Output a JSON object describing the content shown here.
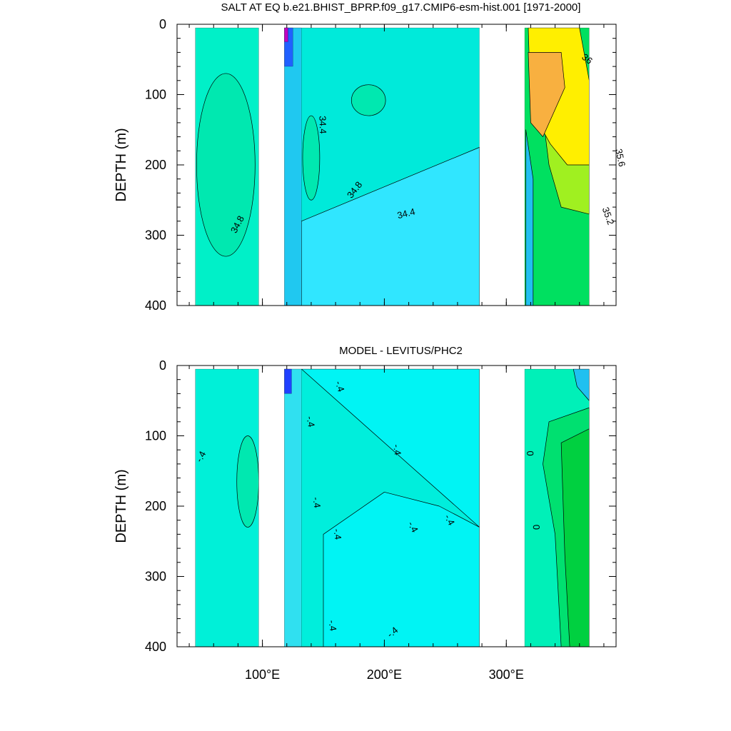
{
  "chart_data": [
    {
      "type": "heatmap",
      "title": "SALT AT EQ b.e21.BHIST_BPRP.f09_g17.CMIP6-esm-hist.001 [1971-2000]",
      "ylabel": "DEPTH (m)",
      "xlim": [
        30,
        390
      ],
      "ylim": [
        400,
        0
      ],
      "y_ticks": [
        "0",
        "100",
        "200",
        "300",
        "400"
      ],
      "x_tick_values": [
        100,
        200,
        300
      ],
      "contour_labels": [
        {
          "text": "34.4",
          "x": 149,
          "y": 143,
          "angle": 88
        },
        {
          "text": "34.8",
          "x": 176,
          "y": 236,
          "angle": -52
        },
        {
          "text": "34.8",
          "x": 80,
          "y": 285,
          "angle": -62
        },
        {
          "text": "34.4",
          "x": 218,
          "y": 270,
          "angle": -14
        },
        {
          "text": "36",
          "x": 366,
          "y": 50,
          "angle": 38
        },
        {
          "text": "35.6",
          "x": 393,
          "y": 190,
          "angle": 78
        },
        {
          "text": "35.2",
          "x": 383,
          "y": 273,
          "angle": 70
        }
      ],
      "regions": [
        {
          "x0": 45,
          "x1": 97,
          "y0": 5,
          "y1": 400,
          "color": "#00f0c8"
        },
        {
          "x0": 45,
          "x1": 97,
          "y0": 5,
          "y1": 400,
          "color": "#00e8b0",
          "shape": "ellipse",
          "cx": 70,
          "cy": 200,
          "rx": 24,
          "ry": 130
        },
        {
          "x0": 118,
          "x1": 278,
          "y0": 5,
          "y1": 400,
          "color": "#00eada"
        },
        {
          "x0": 118,
          "x1": 278,
          "y0": 5,
          "y1": 400,
          "color": "#30e6ff",
          "shape": "wedge",
          "pts": [
            [
              132,
              280
            ],
            [
              278,
              175
            ],
            [
              278,
              400
            ],
            [
              132,
              400
            ]
          ]
        },
        {
          "x0": 118,
          "x1": 132,
          "y0": 5,
          "y1": 400,
          "color": "#20c8f0"
        },
        {
          "x0": 132,
          "x1": 278,
          "y0": 5,
          "y1": 400,
          "color": "#00e8b0",
          "shape": "ellipse",
          "cx": 140,
          "cy": 190,
          "rx": 7,
          "ry": 60
        },
        {
          "x0": 132,
          "x1": 278,
          "y0": 5,
          "y1": 400,
          "color": "#00e8b0",
          "shape": "ellipse",
          "cx": 187,
          "cy": 108,
          "rx": 14,
          "ry": 22
        },
        {
          "x0": 118,
          "x1": 125,
          "y0": 5,
          "y1": 60,
          "color": "#2060ff"
        },
        {
          "x0": 118,
          "x1": 121,
          "y0": 5,
          "y1": 25,
          "color": "#c000c0"
        },
        {
          "x0": 315,
          "x1": 368,
          "y0": 5,
          "y1": 400,
          "color": "#00e060"
        },
        {
          "x0": 315,
          "x1": 368,
          "y0": 5,
          "y1": 400,
          "color": "#a0f020",
          "shape": "wedge",
          "pts": [
            [
              330,
              130
            ],
            [
              368,
              110
            ],
            [
              368,
              270
            ],
            [
              345,
              260
            ],
            [
              335,
              200
            ]
          ]
        },
        {
          "x0": 315,
          "x1": 368,
          "y0": 5,
          "y1": 400,
          "color": "#ffef00",
          "shape": "wedge",
          "pts": [
            [
              318,
              5
            ],
            [
              360,
              5
            ],
            [
              368,
              80
            ],
            [
              368,
              200
            ],
            [
              350,
              200
            ],
            [
              336,
              170
            ],
            [
              320,
              120
            ]
          ]
        },
        {
          "x0": 315,
          "x1": 368,
          "y0": 5,
          "y1": 400,
          "color": "#f8b040",
          "shape": "wedge",
          "pts": [
            [
              318,
              40
            ],
            [
              345,
              40
            ],
            [
              348,
              90
            ],
            [
              330,
              160
            ],
            [
              320,
              140
            ]
          ]
        },
        {
          "x0": 315,
          "x1": 368,
          "y0": 5,
          "y1": 400,
          "color": "#20c0f0",
          "shape": "wedge",
          "pts": [
            [
              316,
              150
            ],
            [
              322,
              220
            ],
            [
              322,
              400
            ],
            [
              316,
              400
            ]
          ]
        }
      ]
    },
    {
      "type": "heatmap",
      "title": "MODEL - LEVITUS/PHC2",
      "ylabel": "DEPTH (m)",
      "xlim": [
        30,
        390
      ],
      "ylim": [
        400,
        0
      ],
      "y_ticks": [
        "0",
        "100",
        "200",
        "300",
        "400"
      ],
      "x_tick_values": [
        100,
        200,
        300
      ],
      "x_tick_labels": [
        "100°E",
        "200°E",
        "300°E"
      ],
      "contour_labels": [
        {
          "text": "-.4",
          "x": 50,
          "y": 130,
          "angle": -62
        },
        {
          "text": "-.4",
          "x": 163,
          "y": 30,
          "angle": 72
        },
        {
          "text": "-.4",
          "x": 139,
          "y": 80,
          "angle": 80
        },
        {
          "text": "-.4",
          "x": 210,
          "y": 120,
          "angle": 82
        },
        {
          "text": "-.4",
          "x": 144,
          "y": 195,
          "angle": 82
        },
        {
          "text": "-.4",
          "x": 161,
          "y": 240,
          "angle": 82
        },
        {
          "text": "-.4",
          "x": 223,
          "y": 230,
          "angle": 62
        },
        {
          "text": "-.4",
          "x": 253,
          "y": 220,
          "angle": 62
        },
        {
          "text": "-.4",
          "x": 157,
          "y": 370,
          "angle": 82
        },
        {
          "text": "-.4",
          "x": 207,
          "y": 380,
          "angle": -40
        },
        {
          "text": "0",
          "x": 319,
          "y": 125,
          "angle": 88
        },
        {
          "text": "0",
          "x": 324,
          "y": 230,
          "angle": 88
        }
      ],
      "regions": [
        {
          "x0": 45,
          "x1": 97,
          "y0": 5,
          "y1": 400,
          "color": "#00f0d8"
        },
        {
          "x0": 45,
          "x1": 97,
          "y0": 5,
          "y1": 400,
          "color": "#00e8b0",
          "shape": "ellipse",
          "cx": 88,
          "cy": 165,
          "rx": 9,
          "ry": 65
        },
        {
          "x0": 118,
          "x1": 278,
          "y0": 5,
          "y1": 400,
          "color": "#00eedc"
        },
        {
          "x0": 118,
          "x1": 278,
          "y0": 5,
          "y1": 400,
          "color": "#00f4f4",
          "shape": "wedge",
          "pts": [
            [
              132,
              5
            ],
            [
              278,
              5
            ],
            [
              278,
              400
            ],
            [
              150,
              400
            ],
            [
              150,
              240
            ],
            [
              200,
              180
            ],
            [
              245,
              200
            ],
            [
              278,
              230
            ]
          ]
        },
        {
          "x0": 118,
          "x1": 132,
          "y0": 5,
          "y1": 400,
          "color": "#30e0f0"
        },
        {
          "x0": 118,
          "x1": 124,
          "y0": 5,
          "y1": 40,
          "color": "#2040ff"
        },
        {
          "x0": 315,
          "x1": 368,
          "y0": 5,
          "y1": 400,
          "color": "#00f0b8"
        },
        {
          "x0": 315,
          "x1": 368,
          "y0": 5,
          "y1": 400,
          "color": "#00e070",
          "shape": "wedge",
          "pts": [
            [
              335,
              80
            ],
            [
              368,
              60
            ],
            [
              368,
              400
            ],
            [
              345,
              400
            ],
            [
              340,
              240
            ],
            [
              330,
              140
            ]
          ]
        },
        {
          "x0": 315,
          "x1": 368,
          "y0": 5,
          "y1": 400,
          "color": "#00d040",
          "shape": "wedge",
          "pts": [
            [
              345,
              110
            ],
            [
              368,
              90
            ],
            [
              368,
              400
            ],
            [
              352,
              400
            ],
            [
              348,
              270
            ]
          ]
        },
        {
          "x0": 315,
          "x1": 368,
          "y0": 5,
          "y1": 400,
          "color": "#20c0f0",
          "shape": "wedge",
          "pts": [
            [
              355,
              5
            ],
            [
              368,
              5
            ],
            [
              368,
              50
            ],
            [
              358,
              30
            ]
          ]
        }
      ]
    }
  ]
}
